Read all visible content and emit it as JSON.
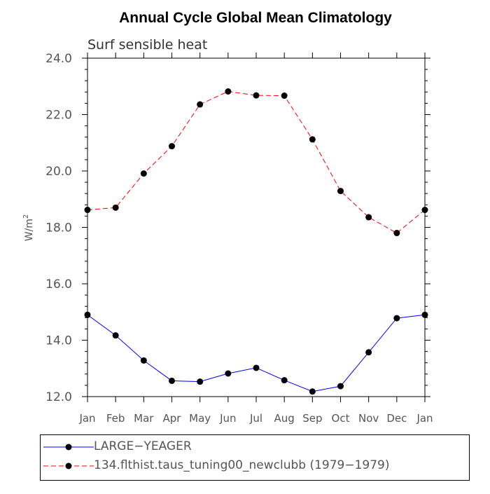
{
  "chart_data": {
    "type": "line",
    "title": "Annual Cycle Global Mean Climatology",
    "subtitle": "Surf sensible heat",
    "ylabel": "W/m",
    "ylabel_superscript": "2",
    "xlabel": "",
    "ylim": [
      12.0,
      24.0
    ],
    "yticks": [
      "12.0",
      "14.0",
      "16.0",
      "18.0",
      "20.0",
      "22.0",
      "24.0"
    ],
    "categories": [
      "Jan",
      "Feb",
      "Mar",
      "Apr",
      "May",
      "Jun",
      "Jul",
      "Aug",
      "Sep",
      "Oct",
      "Nov",
      "Dec",
      "Jan"
    ],
    "grid": false,
    "legend_position": "bottom",
    "series": [
      {
        "name": "LARGE−YEAGER",
        "color": "#0000ff",
        "line_style": "solid",
        "values": [
          14.9,
          14.17,
          13.28,
          12.56,
          12.53,
          12.82,
          13.02,
          12.58,
          12.18,
          12.37,
          13.57,
          14.78,
          14.9
        ]
      },
      {
        "name": "134.flthist.taus_tuning00_newclubb (1979−1979)",
        "color": "#ff0000",
        "line_style": "dashed",
        "values": [
          18.62,
          18.7,
          19.91,
          20.88,
          22.36,
          22.82,
          22.68,
          22.67,
          21.12,
          19.29,
          18.36,
          17.8,
          18.62
        ]
      }
    ]
  }
}
